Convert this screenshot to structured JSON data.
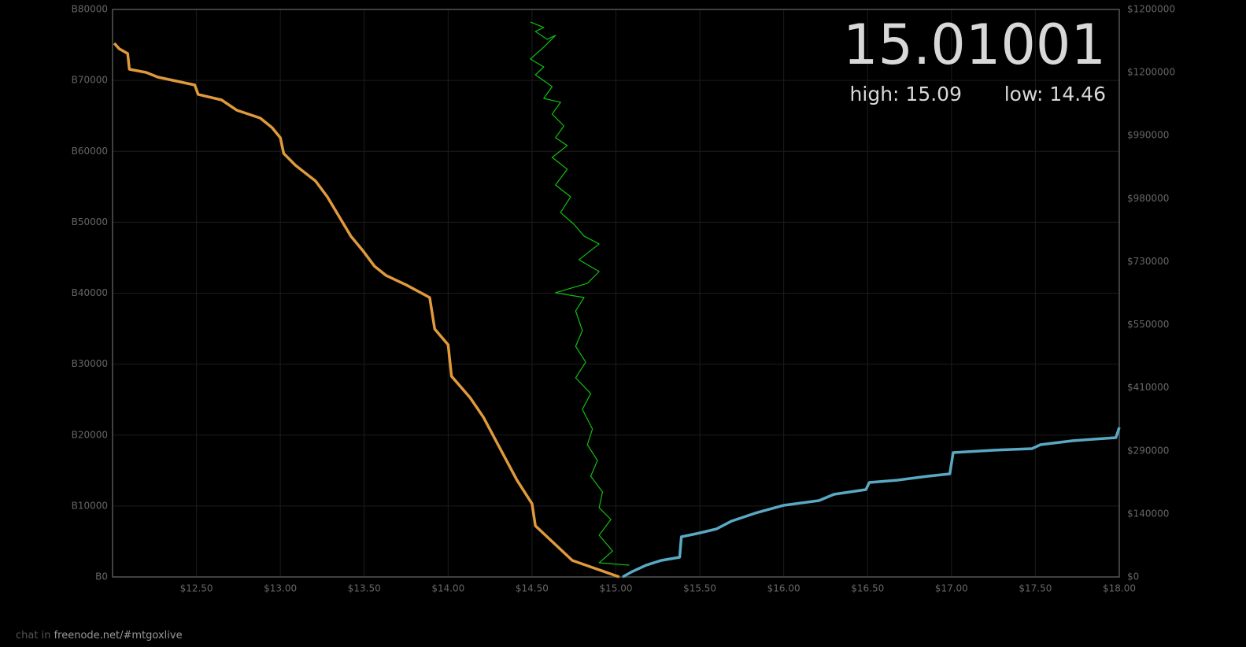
{
  "chart_data": {
    "type": "line",
    "xlim": [
      12.0,
      18.0
    ],
    "xticks": [
      {
        "value": 12.5,
        "label": "$12.50"
      },
      {
        "value": 13.0,
        "label": "$13.00"
      },
      {
        "value": 13.5,
        "label": "$13.50"
      },
      {
        "value": 14.0,
        "label": "$14.00"
      },
      {
        "value": 14.5,
        "label": "$14.50"
      },
      {
        "value": 15.0,
        "label": "$15.00"
      },
      {
        "value": 15.5,
        "label": "$15.50"
      },
      {
        "value": 16.0,
        "label": "$16.00"
      },
      {
        "value": 16.5,
        "label": "$16.50"
      },
      {
        "value": 17.0,
        "label": "$17.00"
      },
      {
        "value": 17.5,
        "label": "$17.50"
      },
      {
        "value": 18.0,
        "label": "$18.00"
      }
    ],
    "ylim": [
      0,
      80000
    ],
    "yticks": [
      {
        "value": 0,
        "label": "B0"
      },
      {
        "value": 10000,
        "label": "B10000"
      },
      {
        "value": 20000,
        "label": "B20000"
      },
      {
        "value": 30000,
        "label": "B30000"
      },
      {
        "value": 40000,
        "label": "B40000"
      },
      {
        "value": 50000,
        "label": "B50000"
      },
      {
        "value": 60000,
        "label": "B60000"
      },
      {
        "value": 70000,
        "label": "B70000"
      },
      {
        "value": 80000,
        "label": "B80000"
      }
    ],
    "y2_labels": [
      "$0",
      "$140000",
      "$290000",
      "$410000",
      "$550000",
      "$730000",
      "$980000",
      "$990000",
      "$1200000",
      "$1200000"
    ],
    "grid": true,
    "price": "15.01001",
    "high": "high: 15.09",
    "low": "low: 14.46",
    "series": [
      {
        "color": "#e09a3c",
        "width": 3.5,
        "x": [
          12.01,
          12.04,
          12.09,
          12.1,
          12.2,
          12.27,
          12.49,
          12.51,
          12.65,
          12.74,
          12.88,
          12.95,
          13.0,
          13.02,
          13.09,
          13.21,
          13.28,
          13.35,
          13.42,
          13.49,
          13.56,
          13.63,
          13.75,
          13.89,
          13.92,
          14.0,
          14.02,
          14.13,
          14.21,
          14.31,
          14.41,
          14.5,
          14.52,
          14.62,
          14.74,
          14.9,
          15.02
        ],
        "values": [
          75230,
          74450,
          73790,
          71570,
          71120,
          70460,
          69350,
          68020,
          67240,
          65800,
          64690,
          63360,
          61910,
          59700,
          58030,
          55810,
          53590,
          50820,
          48050,
          46050,
          43830,
          42500,
          41170,
          39390,
          34950,
          32730,
          28300,
          25300,
          22530,
          18090,
          13650,
          10320,
          7210,
          4990,
          2330,
          1000,
          0
        ]
      },
      {
        "color": "#5aa9c4",
        "width": 3.5,
        "x": [
          15.04,
          15.09,
          15.18,
          15.27,
          15.38,
          15.39,
          15.48,
          15.6,
          15.69,
          15.83,
          16.0,
          16.21,
          16.3,
          16.49,
          16.51,
          16.68,
          16.86,
          16.99,
          17.01,
          17.25,
          17.48,
          17.53,
          17.72,
          17.98,
          18.0
        ],
        "values": [
          0,
          670,
          1660,
          2330,
          2770,
          5660,
          6100,
          6770,
          7880,
          8990,
          10100,
          10760,
          11650,
          12320,
          13320,
          13650,
          14200,
          14540,
          17530,
          17870,
          18090,
          18640,
          19200,
          19640,
          21080
        ]
      },
      {
        "color": "#10c010",
        "width": 1.2,
        "x": [
          14.49,
          14.57,
          14.52,
          14.59,
          14.64,
          14.57,
          14.49,
          14.57,
          14.52,
          14.62,
          14.57,
          14.67,
          14.62,
          14.69,
          14.64,
          14.71,
          14.62,
          14.71,
          14.64,
          14.73,
          14.67,
          14.75,
          14.81,
          14.9,
          14.78,
          14.9,
          14.83,
          14.64,
          14.81,
          14.76,
          14.8,
          14.76,
          14.82,
          14.76,
          14.85,
          14.8,
          14.86,
          14.83,
          14.89,
          14.85,
          14.92,
          14.9,
          14.97,
          14.9,
          14.98,
          14.9,
          15.08
        ],
        "values": [
          78230,
          77450,
          76900,
          75790,
          76340,
          74680,
          73010,
          71900,
          70790,
          69130,
          67460,
          66910,
          65250,
          63580,
          61920,
          60810,
          59140,
          57480,
          55260,
          53590,
          51370,
          49710,
          48050,
          46940,
          44720,
          43050,
          41390,
          40060,
          39390,
          37500,
          34730,
          32510,
          30290,
          28070,
          25850,
          23630,
          20860,
          18640,
          16420,
          14200,
          11980,
          9760,
          8100,
          5880,
          3660,
          1990,
          1660
        ]
      }
    ]
  },
  "footer": {
    "prefix": "chat in",
    "link": "freenode.net/#mtgoxlive"
  }
}
